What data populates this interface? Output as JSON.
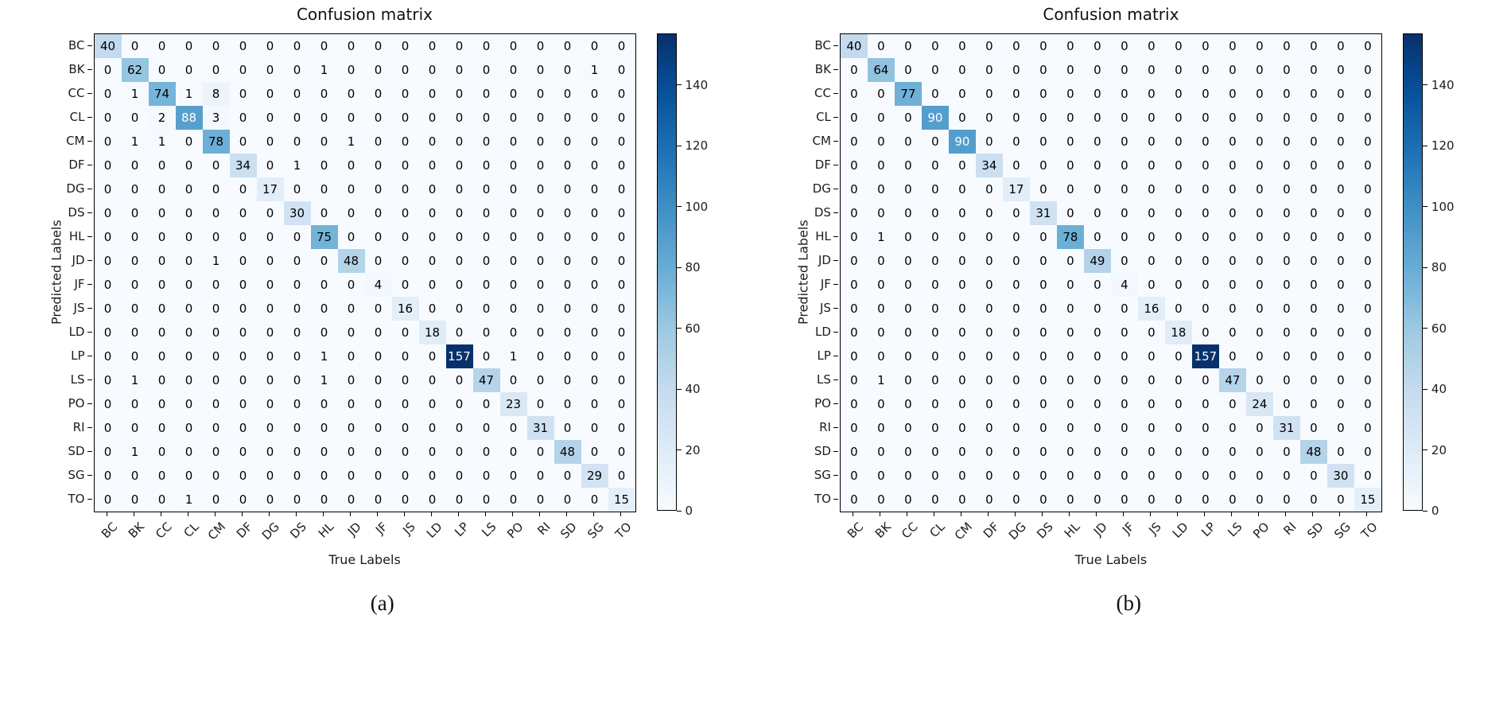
{
  "chart_data": [
    {
      "type": "heatmap",
      "title": "Confusion matrix",
      "xlabel": "True Labels",
      "ylabel": "Predicted Labels",
      "caption": "(a)",
      "labels": [
        "BC",
        "BK",
        "CC",
        "CL",
        "CM",
        "DF",
        "DG",
        "DS",
        "HL",
        "JD",
        "JF",
        "JS",
        "LD",
        "LP",
        "LS",
        "PO",
        "RI",
        "SD",
        "SG",
        "TO"
      ],
      "vmin": 0,
      "vmax": 157,
      "text_threshold": 0.5,
      "text_color_low": "#000000",
      "text_color_high": "#ffffff",
      "colorbar_ticks": [
        0,
        20,
        40,
        60,
        80,
        100,
        120,
        140
      ],
      "colormap": {
        "name": "Blues",
        "stops": [
          {
            "t": 0.0,
            "color": "#f7fbff"
          },
          {
            "t": 0.125,
            "color": "#deebf7"
          },
          {
            "t": 0.25,
            "color": "#c6dbef"
          },
          {
            "t": 0.375,
            "color": "#9ecae1"
          },
          {
            "t": 0.5,
            "color": "#6baed6"
          },
          {
            "t": 0.625,
            "color": "#4292c6"
          },
          {
            "t": 0.75,
            "color": "#2171b5"
          },
          {
            "t": 0.875,
            "color": "#08519c"
          },
          {
            "t": 1.0,
            "color": "#08306b"
          }
        ]
      },
      "matrix": [
        [
          40,
          0,
          0,
          0,
          0,
          0,
          0,
          0,
          0,
          0,
          0,
          0,
          0,
          0,
          0,
          0,
          0,
          0,
          0,
          0
        ],
        [
          0,
          62,
          0,
          0,
          0,
          0,
          0,
          0,
          1,
          0,
          0,
          0,
          0,
          0,
          0,
          0,
          0,
          0,
          1,
          0
        ],
        [
          0,
          1,
          74,
          1,
          8,
          0,
          0,
          0,
          0,
          0,
          0,
          0,
          0,
          0,
          0,
          0,
          0,
          0,
          0,
          0
        ],
        [
          0,
          0,
          2,
          88,
          3,
          0,
          0,
          0,
          0,
          0,
          0,
          0,
          0,
          0,
          0,
          0,
          0,
          0,
          0,
          0
        ],
        [
          0,
          1,
          1,
          0,
          78,
          0,
          0,
          0,
          0,
          1,
          0,
          0,
          0,
          0,
          0,
          0,
          0,
          0,
          0,
          0
        ],
        [
          0,
          0,
          0,
          0,
          0,
          34,
          0,
          1,
          0,
          0,
          0,
          0,
          0,
          0,
          0,
          0,
          0,
          0,
          0,
          0
        ],
        [
          0,
          0,
          0,
          0,
          0,
          0,
          17,
          0,
          0,
          0,
          0,
          0,
          0,
          0,
          0,
          0,
          0,
          0,
          0,
          0
        ],
        [
          0,
          0,
          0,
          0,
          0,
          0,
          0,
          30,
          0,
          0,
          0,
          0,
          0,
          0,
          0,
          0,
          0,
          0,
          0,
          0
        ],
        [
          0,
          0,
          0,
          0,
          0,
          0,
          0,
          0,
          75,
          0,
          0,
          0,
          0,
          0,
          0,
          0,
          0,
          0,
          0,
          0
        ],
        [
          0,
          0,
          0,
          0,
          1,
          0,
          0,
          0,
          0,
          48,
          0,
          0,
          0,
          0,
          0,
          0,
          0,
          0,
          0,
          0
        ],
        [
          0,
          0,
          0,
          0,
          0,
          0,
          0,
          0,
          0,
          0,
          4,
          0,
          0,
          0,
          0,
          0,
          0,
          0,
          0,
          0
        ],
        [
          0,
          0,
          0,
          0,
          0,
          0,
          0,
          0,
          0,
          0,
          0,
          16,
          0,
          0,
          0,
          0,
          0,
          0,
          0,
          0
        ],
        [
          0,
          0,
          0,
          0,
          0,
          0,
          0,
          0,
          0,
          0,
          0,
          0,
          18,
          0,
          0,
          0,
          0,
          0,
          0,
          0
        ],
        [
          0,
          0,
          0,
          0,
          0,
          0,
          0,
          0,
          1,
          0,
          0,
          0,
          0,
          157,
          0,
          1,
          0,
          0,
          0,
          0
        ],
        [
          0,
          1,
          0,
          0,
          0,
          0,
          0,
          0,
          1,
          0,
          0,
          0,
          0,
          0,
          47,
          0,
          0,
          0,
          0,
          0
        ],
        [
          0,
          0,
          0,
          0,
          0,
          0,
          0,
          0,
          0,
          0,
          0,
          0,
          0,
          0,
          0,
          23,
          0,
          0,
          0,
          0
        ],
        [
          0,
          0,
          0,
          0,
          0,
          0,
          0,
          0,
          0,
          0,
          0,
          0,
          0,
          0,
          0,
          0,
          31,
          0,
          0,
          0
        ],
        [
          0,
          1,
          0,
          0,
          0,
          0,
          0,
          0,
          0,
          0,
          0,
          0,
          0,
          0,
          0,
          0,
          0,
          48,
          0,
          0
        ],
        [
          0,
          0,
          0,
          0,
          0,
          0,
          0,
          0,
          0,
          0,
          0,
          0,
          0,
          0,
          0,
          0,
          0,
          0,
          29,
          0
        ],
        [
          0,
          0,
          0,
          1,
          0,
          0,
          0,
          0,
          0,
          0,
          0,
          0,
          0,
          0,
          0,
          0,
          0,
          0,
          0,
          15
        ]
      ]
    },
    {
      "type": "heatmap",
      "title": "Confusion matrix",
      "xlabel": "True Labels",
      "ylabel": "Predicted Labels",
      "caption": "(b)",
      "labels": [
        "BC",
        "BK",
        "CC",
        "CL",
        "CM",
        "DF",
        "DG",
        "DS",
        "HL",
        "JD",
        "JF",
        "JS",
        "LD",
        "LP",
        "LS",
        "PO",
        "RI",
        "SD",
        "SG",
        "TO"
      ],
      "vmin": 0,
      "vmax": 157,
      "text_threshold": 0.5,
      "text_color_low": "#000000",
      "text_color_high": "#ffffff",
      "colorbar_ticks": [
        0,
        20,
        40,
        60,
        80,
        100,
        120,
        140
      ],
      "colormap": {
        "name": "Blues",
        "stops": [
          {
            "t": 0.0,
            "color": "#f7fbff"
          },
          {
            "t": 0.125,
            "color": "#deebf7"
          },
          {
            "t": 0.25,
            "color": "#c6dbef"
          },
          {
            "t": 0.375,
            "color": "#9ecae1"
          },
          {
            "t": 0.5,
            "color": "#6baed6"
          },
          {
            "t": 0.625,
            "color": "#4292c6"
          },
          {
            "t": 0.75,
            "color": "#2171b5"
          },
          {
            "t": 0.875,
            "color": "#08519c"
          },
          {
            "t": 1.0,
            "color": "#08306b"
          }
        ]
      },
      "matrix": [
        [
          40,
          0,
          0,
          0,
          0,
          0,
          0,
          0,
          0,
          0,
          0,
          0,
          0,
          0,
          0,
          0,
          0,
          0,
          0,
          0
        ],
        [
          0,
          64,
          0,
          0,
          0,
          0,
          0,
          0,
          0,
          0,
          0,
          0,
          0,
          0,
          0,
          0,
          0,
          0,
          0,
          0
        ],
        [
          0,
          0,
          77,
          0,
          0,
          0,
          0,
          0,
          0,
          0,
          0,
          0,
          0,
          0,
          0,
          0,
          0,
          0,
          0,
          0
        ],
        [
          0,
          0,
          0,
          90,
          0,
          0,
          0,
          0,
          0,
          0,
          0,
          0,
          0,
          0,
          0,
          0,
          0,
          0,
          0,
          0
        ],
        [
          0,
          0,
          0,
          0,
          90,
          0,
          0,
          0,
          0,
          0,
          0,
          0,
          0,
          0,
          0,
          0,
          0,
          0,
          0,
          0
        ],
        [
          0,
          0,
          0,
          0,
          0,
          34,
          0,
          0,
          0,
          0,
          0,
          0,
          0,
          0,
          0,
          0,
          0,
          0,
          0,
          0
        ],
        [
          0,
          0,
          0,
          0,
          0,
          0,
          17,
          0,
          0,
          0,
          0,
          0,
          0,
          0,
          0,
          0,
          0,
          0,
          0,
          0
        ],
        [
          0,
          0,
          0,
          0,
          0,
          0,
          0,
          31,
          0,
          0,
          0,
          0,
          0,
          0,
          0,
          0,
          0,
          0,
          0,
          0
        ],
        [
          0,
          1,
          0,
          0,
          0,
          0,
          0,
          0,
          78,
          0,
          0,
          0,
          0,
          0,
          0,
          0,
          0,
          0,
          0,
          0
        ],
        [
          0,
          0,
          0,
          0,
          0,
          0,
          0,
          0,
          0,
          49,
          0,
          0,
          0,
          0,
          0,
          0,
          0,
          0,
          0,
          0
        ],
        [
          0,
          0,
          0,
          0,
          0,
          0,
          0,
          0,
          0,
          0,
          4,
          0,
          0,
          0,
          0,
          0,
          0,
          0,
          0,
          0
        ],
        [
          0,
          0,
          0,
          0,
          0,
          0,
          0,
          0,
          0,
          0,
          0,
          16,
          0,
          0,
          0,
          0,
          0,
          0,
          0,
          0
        ],
        [
          0,
          0,
          0,
          0,
          0,
          0,
          0,
          0,
          0,
          0,
          0,
          0,
          18,
          0,
          0,
          0,
          0,
          0,
          0,
          0
        ],
        [
          0,
          0,
          0,
          0,
          0,
          0,
          0,
          0,
          0,
          0,
          0,
          0,
          0,
          157,
          0,
          0,
          0,
          0,
          0,
          0
        ],
        [
          0,
          1,
          0,
          0,
          0,
          0,
          0,
          0,
          0,
          0,
          0,
          0,
          0,
          0,
          47,
          0,
          0,
          0,
          0,
          0
        ],
        [
          0,
          0,
          0,
          0,
          0,
          0,
          0,
          0,
          0,
          0,
          0,
          0,
          0,
          0,
          0,
          24,
          0,
          0,
          0,
          0
        ],
        [
          0,
          0,
          0,
          0,
          0,
          0,
          0,
          0,
          0,
          0,
          0,
          0,
          0,
          0,
          0,
          0,
          31,
          0,
          0,
          0
        ],
        [
          0,
          0,
          0,
          0,
          0,
          0,
          0,
          0,
          0,
          0,
          0,
          0,
          0,
          0,
          0,
          0,
          0,
          48,
          0,
          0
        ],
        [
          0,
          0,
          0,
          0,
          0,
          0,
          0,
          0,
          0,
          0,
          0,
          0,
          0,
          0,
          0,
          0,
          0,
          0,
          30,
          0
        ],
        [
          0,
          0,
          0,
          0,
          0,
          0,
          0,
          0,
          0,
          0,
          0,
          0,
          0,
          0,
          0,
          0,
          0,
          0,
          0,
          15
        ]
      ]
    }
  ]
}
